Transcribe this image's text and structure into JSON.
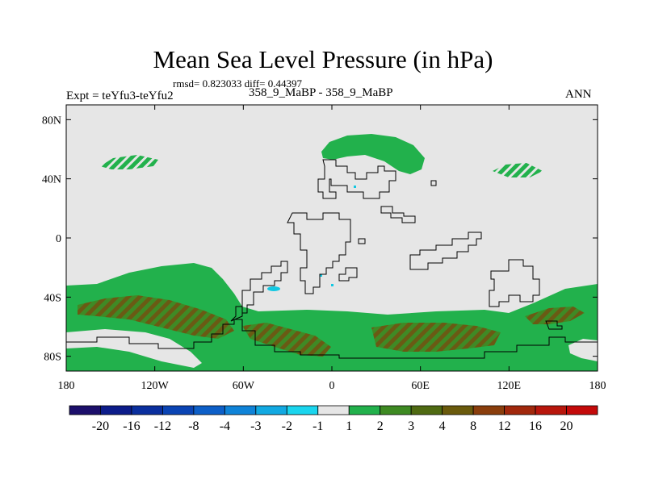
{
  "title": "Mean Sea Level Pressure (in hPa)",
  "stats": "rmsd= 0.823033 diff= 0.44397",
  "experiment": "Expt = teYfu3-teYfu2",
  "subtitle": "358_9_MaBP - 358_9_MaBP",
  "season": "ANN",
  "chart_data": {
    "type": "heatmap",
    "title": "Mean Sea Level Pressure (in hPa)",
    "variable": "Mean Sea Level Pressure difference",
    "units": "hPa",
    "x_axis": {
      "range": [
        -180,
        180
      ],
      "ticks": [
        -180,
        -120,
        -60,
        0,
        60,
        120,
        180
      ],
      "tick_labels": [
        "180",
        "120W",
        "60W",
        "0",
        "60E",
        "120E",
        "180"
      ]
    },
    "y_axis": {
      "range": [
        -90,
        90
      ],
      "ticks": [
        80,
        40,
        0,
        -40,
        -80
      ],
      "tick_labels": [
        "80N",
        "40N",
        "0",
        "40S",
        "80S"
      ]
    },
    "colorbar": {
      "levels": [
        "-20",
        "-16",
        "-12",
        "-8",
        "-4",
        "-3",
        "-2",
        "-1",
        "1",
        "2",
        "3",
        "4",
        "8",
        "12",
        "16",
        "20"
      ],
      "colors": [
        "#1c0f6b",
        "#0c1c8a",
        "#0a2f9e",
        "#0a44b4",
        "#0d5fc8",
        "#0f83d8",
        "#12a9e2",
        "#1ad5ee",
        "#e6e6e6",
        "#22b14c",
        "#3e8a22",
        "#4f6a12",
        "#6a5a0c",
        "#8a3e0c",
        "#a1280c",
        "#b8160c",
        "#c40a0a"
      ]
    },
    "regions": [
      {
        "name": "southern ocean band 30S-90S",
        "value_range": "1 to 2 hPa",
        "color_key": "2"
      },
      {
        "name": "south pacific / south indian ocean cores",
        "value_range": "2 to 3 hPa",
        "color_key": "3"
      },
      {
        "name": "north atlantic / europe high",
        "value_range": "1 to 2 hPa",
        "color_key": "2"
      },
      {
        "name": "north pacific patches near 45N",
        "value_range": "1 to 2 hPa",
        "color_key": "2"
      },
      {
        "name": "small patches south of equator near 40W",
        "value_range": "-2 to -1 hPa",
        "color_key": "-1"
      },
      {
        "name": "remaining globe",
        "value_range": "-1 to 1 hPa",
        "color_key": "1"
      }
    ]
  }
}
